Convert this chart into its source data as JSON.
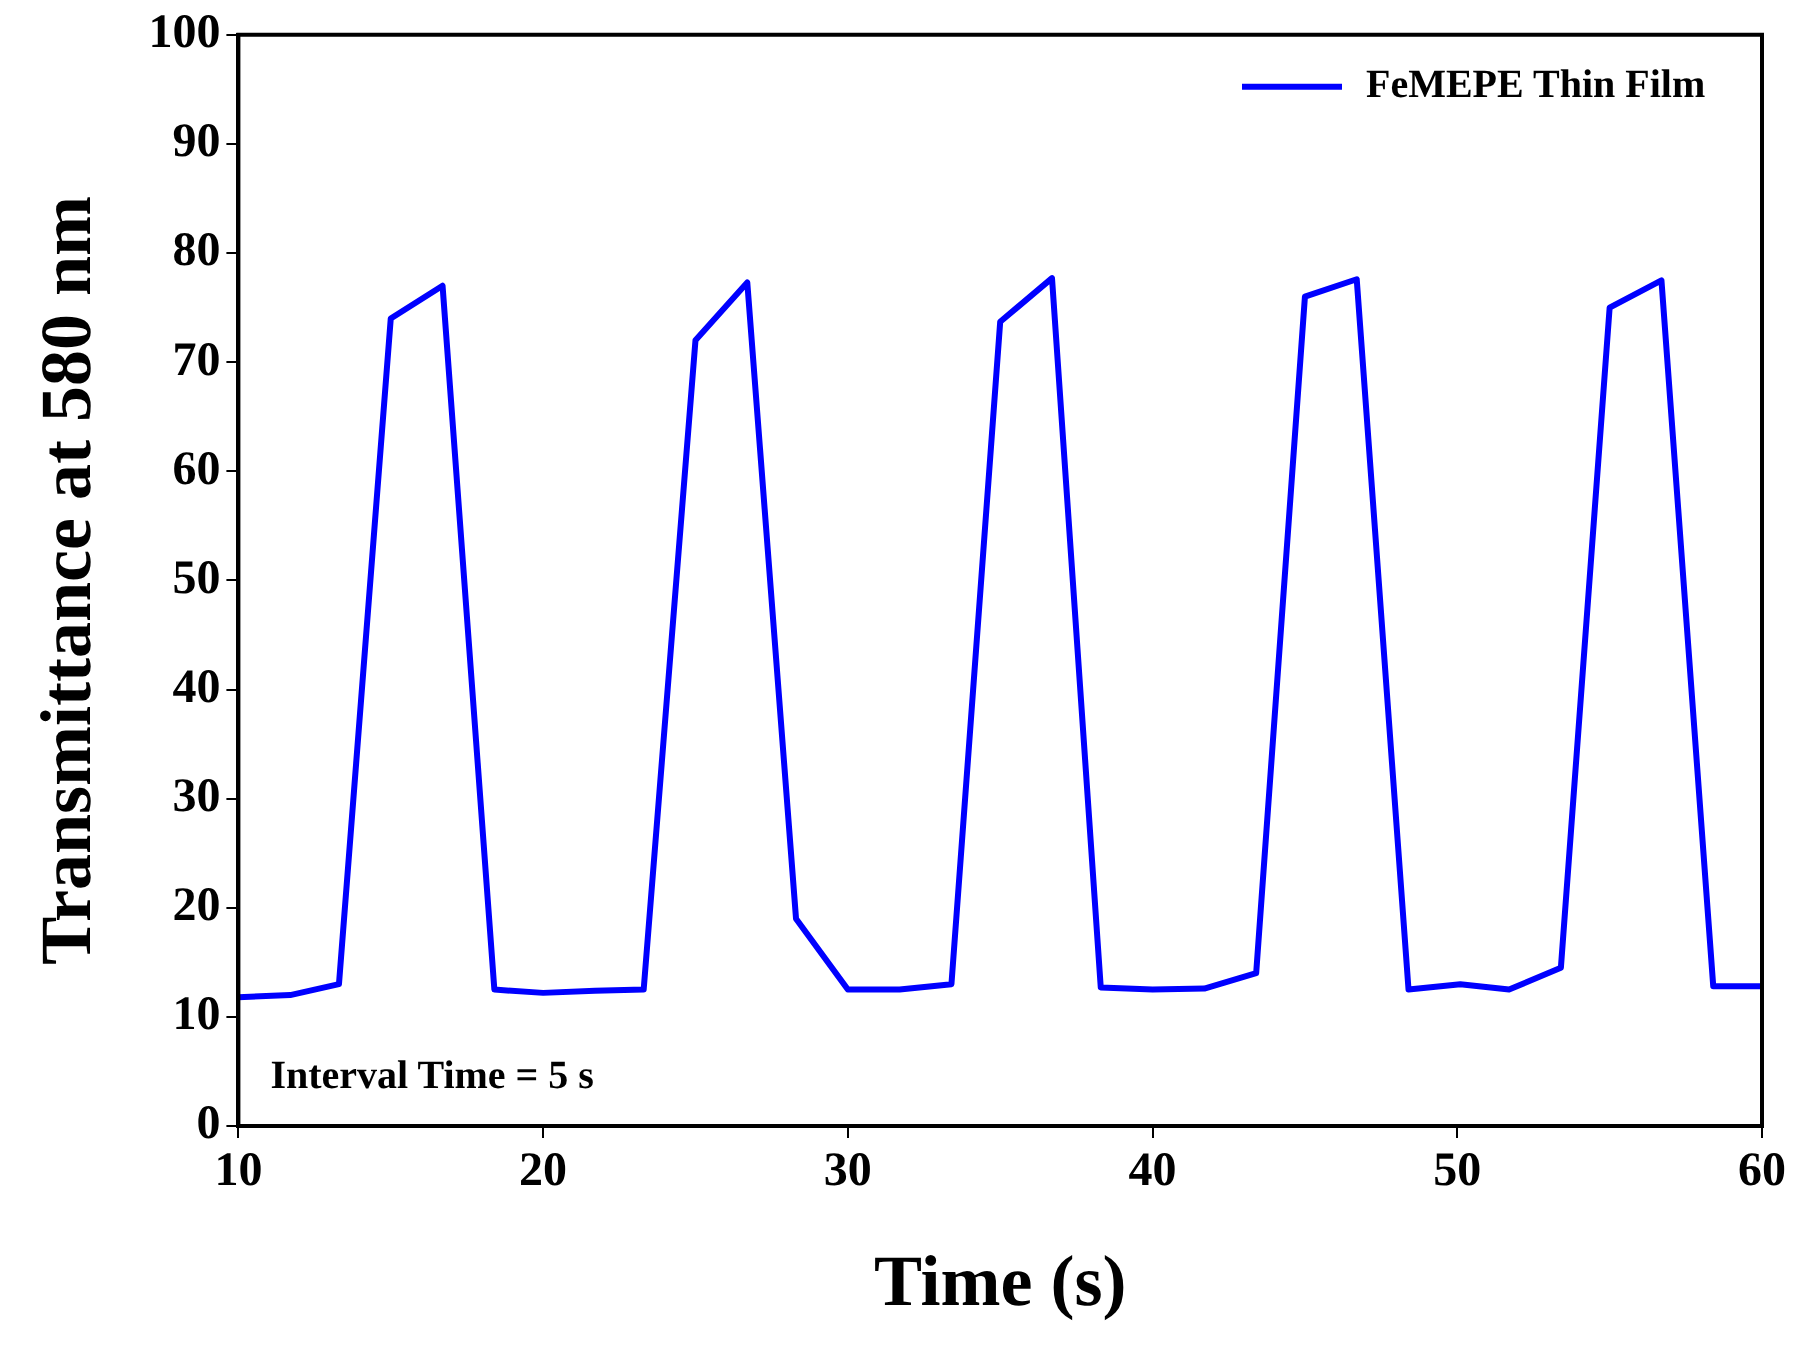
{
  "chart_data": {
    "type": "line",
    "xlabel": "Time (s)",
    "ylabel": "Transmittance at 580 nm",
    "x": [
      10,
      11.7,
      13.3,
      15,
      16.7,
      18.4,
      20,
      21.7,
      23.3,
      25,
      26.7,
      28.3,
      30,
      31.7,
      33.4,
      35,
      36.7,
      38.3,
      40,
      41.7,
      43.4,
      45,
      46.7,
      48.4,
      50.1,
      51.7,
      53.4,
      55,
      56.7,
      58.4,
      60
    ],
    "series": [
      {
        "name": "FeMEPE Thin Film",
        "color": "#0000ff",
        "values": [
          11.8,
          12,
          13,
          74,
          77,
          12.5,
          12.2,
          12.4,
          12.5,
          72,
          77.3,
          19,
          12.5,
          12.5,
          13,
          73.7,
          77.7,
          12.7,
          12.5,
          12.6,
          14,
          76,
          77.6,
          12.5,
          13,
          12.5,
          14.5,
          75,
          77.5,
          12.8,
          12.8
        ]
      }
    ],
    "xlim": [
      10,
      60
    ],
    "xticks": [
      10,
      20,
      30,
      40,
      50,
      60
    ],
    "ylim": [
      0,
      100
    ],
    "yticks": [
      0,
      10,
      20,
      30,
      40,
      50,
      60,
      70,
      80,
      90,
      100
    ],
    "grid": false,
    "legend": "top right",
    "marker": "none",
    "line_style": "solid",
    "annotations": [
      "Interval Time = 5 s"
    ]
  }
}
